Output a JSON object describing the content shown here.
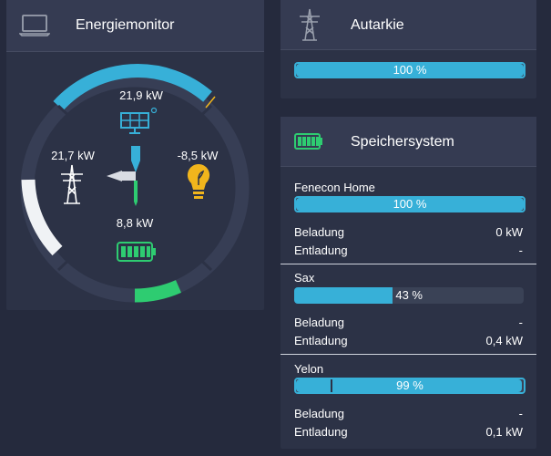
{
  "energy_monitor": {
    "title": "Energiemonitor",
    "icon": "laptop-icon",
    "production": {
      "value": "21,9 kW",
      "icon": "solar-panel-icon",
      "color": "#37b0d8"
    },
    "grid": {
      "value": "21,7 kW",
      "icon": "power-pylon-icon",
      "color": "#ffffff"
    },
    "consumption": {
      "value": "-8,5 kW",
      "icon": "lightbulb-icon",
      "color": "#f1b51c"
    },
    "storage": {
      "value": "8,8 kW",
      "icon": "battery-icon",
      "color": "#2ecc71"
    }
  },
  "autarchy": {
    "title": "Autarkie",
    "icon": "power-pylon-icon",
    "percent_text": "100 %",
    "percent": 100
  },
  "storage_system": {
    "title": "Speichersystem",
    "icon": "battery-icon",
    "systems": [
      {
        "name": "Fenecon Home",
        "percent_text": "100 %",
        "percent": 100,
        "charge_label": "Beladung",
        "charge_value": "0 kW",
        "discharge_label": "Entladung",
        "discharge_value": "-"
      },
      {
        "name": "Sax",
        "percent_text": "43 %",
        "percent": 43,
        "charge_label": "Beladung",
        "charge_value": "-",
        "discharge_label": "Entladung",
        "discharge_value": "0,4 kW"
      },
      {
        "name": "Yelon",
        "percent_text": "99 %",
        "percent": 99,
        "charge_label": "Beladung",
        "charge_value": "-",
        "discharge_label": "Entladung",
        "discharge_value": "0,1 kW"
      }
    ]
  },
  "colors": {
    "accent": "#37b0d8",
    "storage_green": "#2ecc71",
    "consumption_yellow": "#f1b51c",
    "grid_white": "#ffffff"
  }
}
